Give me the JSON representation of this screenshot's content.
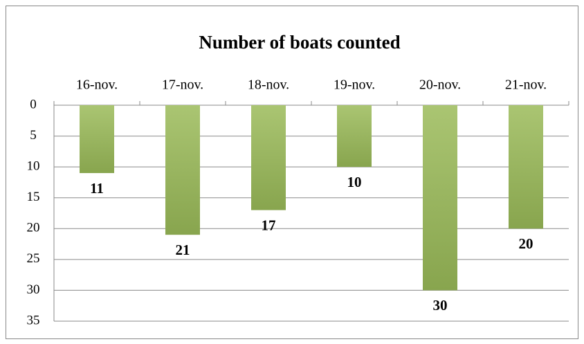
{
  "chart_data": {
    "type": "bar",
    "title": "Number of boats counted",
    "categories": [
      "16-nov.",
      "17-nov.",
      "18-nov.",
      "19-nov.",
      "20-nov.",
      "21-nov."
    ],
    "values": [
      11,
      21,
      17,
      10,
      30,
      20
    ],
    "color": "#9bbb59",
    "ylim": [
      0,
      35
    ],
    "yticks": [
      0,
      5,
      10,
      15,
      20,
      25,
      30,
      35
    ],
    "y_inverted": true,
    "grid": true
  }
}
